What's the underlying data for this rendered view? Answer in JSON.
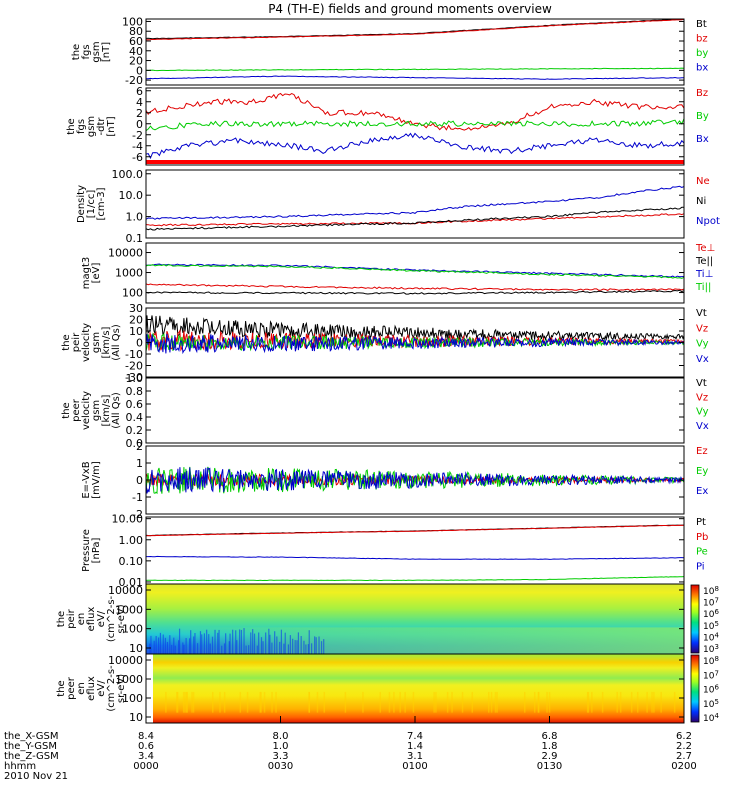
{
  "title": "P4 (TH-E) fields and ground moments overview",
  "chart_data": [
    {
      "id": "fgs",
      "type": "line",
      "ylabel_lines": [
        "the",
        "fgs",
        "gsm",
        "[nT]"
      ],
      "yticks": [
        "100",
        "80",
        "60",
        "40",
        "20",
        "0",
        "-20"
      ],
      "ylim": [
        -30,
        105
      ],
      "series": [
        {
          "name": "Bt",
          "color": "#000000",
          "x": [
            0,
            0.25,
            0.5,
            0.75,
            1.0
          ],
          "y": [
            65,
            69,
            75,
            92,
            105
          ]
        },
        {
          "name": "bz",
          "color": "#e00000",
          "x": [
            0,
            0.25,
            0.5,
            0.75,
            1.0
          ],
          "y": [
            63,
            68,
            74,
            91,
            104
          ]
        },
        {
          "name": "by",
          "color": "#00cc00",
          "x": [
            0,
            0.25,
            0.5,
            0.75,
            1.0
          ],
          "y": [
            0,
            1,
            2,
            3,
            4
          ]
        },
        {
          "name": "bx",
          "color": "#0000cc",
          "x": [
            0,
            0.25,
            0.5,
            0.75,
            1.0
          ],
          "y": [
            -17,
            -12,
            -15,
            -18,
            -15
          ]
        }
      ]
    },
    {
      "id": "fgs_dtr",
      "type": "line",
      "ylabel_lines": [
        "the",
        "fgs",
        "gsm",
        "-dtr",
        "[nT]"
      ],
      "yticks": [
        "6",
        "4",
        "2",
        "0",
        "-2",
        "-4",
        "-6"
      ],
      "ylim": [
        -7.5,
        6.5
      ],
      "series": [
        {
          "name": "Bz",
          "color": "#e00000",
          "x": [
            0,
            0.05,
            0.12,
            0.2,
            0.27,
            0.33,
            0.42,
            0.5,
            0.58,
            0.67,
            0.75,
            0.83,
            0.92,
            1.0
          ],
          "y": [
            2,
            3,
            4,
            4,
            5.5,
            2,
            2,
            0,
            -1,
            0,
            3,
            4,
            3,
            3
          ]
        },
        {
          "name": "By",
          "color": "#00cc00",
          "x": [
            0,
            0.1,
            0.25,
            0.4,
            0.5,
            0.6,
            0.75,
            0.9,
            1.0
          ],
          "y": [
            -1,
            0,
            0,
            0,
            0,
            0,
            0,
            0,
            0.5
          ]
        },
        {
          "name": "Bx",
          "color": "#0000cc",
          "x": [
            0,
            0.08,
            0.17,
            0.27,
            0.33,
            0.42,
            0.5,
            0.58,
            0.67,
            0.75,
            0.83,
            0.92,
            1.0
          ],
          "y": [
            -6,
            -4,
            -3,
            -4,
            -5,
            -3,
            -2,
            -4,
            -5,
            -4,
            -3,
            -4,
            -3.5
          ]
        }
      ]
    },
    {
      "id": "density",
      "type": "line",
      "scale": "log",
      "ylabel_lines": [
        "Density",
        "[1/cc]",
        "[cm-3]"
      ],
      "yticks": [
        "100.0",
        "10.0",
        "1.0",
        "0.1"
      ],
      "ylim": [
        0.1,
        150
      ],
      "series": [
        {
          "name": "Ne",
          "color": "#e00000",
          "x": [
            0,
            0.25,
            0.5,
            0.75,
            1.0
          ],
          "y": [
            0.4,
            0.45,
            0.5,
            0.8,
            1.3
          ]
        },
        {
          "name": "Ni",
          "color": "#000000",
          "x": [
            0,
            0.25,
            0.5,
            0.75,
            1.0
          ],
          "y": [
            0.25,
            0.35,
            0.5,
            1.0,
            2.5
          ]
        },
        {
          "name": "Npot",
          "color": "#0000cc",
          "x": [
            0,
            0.25,
            0.5,
            0.6,
            0.75,
            0.85,
            0.92,
            1.0
          ],
          "y": [
            0.8,
            1.0,
            1.5,
            3.0,
            5.0,
            8.0,
            15.0,
            25.0
          ]
        }
      ]
    },
    {
      "id": "temperature",
      "type": "line",
      "scale": "log",
      "ylabel_lines": [
        "magt3",
        "[eV]"
      ],
      "yticks": [
        "10000",
        "1000",
        "100"
      ],
      "ylim": [
        30,
        30000
      ],
      "series": [
        {
          "name": "Te⊥",
          "color": "#e00000",
          "x": [
            0,
            0.25,
            0.5,
            0.75,
            1.0
          ],
          "y": [
            250,
            200,
            160,
            140,
            140
          ]
        },
        {
          "name": "Te||",
          "color": "#000000",
          "x": [
            0,
            0.25,
            0.5,
            0.75,
            1.0
          ],
          "y": [
            100,
            95,
            90,
            100,
            120
          ]
        },
        {
          "name": "Ti⊥",
          "color": "#0000cc",
          "x": [
            0,
            0.25,
            0.5,
            0.75,
            1.0
          ],
          "y": [
            2500,
            2200,
            1300,
            900,
            600
          ]
        },
        {
          "name": "Ti||",
          "color": "#00cc00",
          "x": [
            0,
            0.25,
            0.5,
            0.75,
            1.0
          ],
          "y": [
            2300,
            2000,
            1200,
            800,
            550
          ]
        }
      ]
    },
    {
      "id": "peir_velocity",
      "type": "line",
      "ylabel_lines": [
        "the",
        "peir",
        "velocity",
        "gsm",
        "[km/s]",
        "(All Qs)"
      ],
      "yticks": [
        "30",
        "20",
        "10",
        "0",
        "-10",
        "-20",
        "-30"
      ],
      "ylim": [
        -30,
        30
      ],
      "series": [
        {
          "name": "Vt",
          "color": "#000000",
          "x": [
            0,
            0.25,
            0.5,
            0.75,
            1.0
          ],
          "y": [
            15,
            11,
            8,
            6,
            5
          ]
        },
        {
          "name": "Vz",
          "color": "#e00000",
          "x": [
            0,
            0.25,
            0.5,
            0.75,
            1.0
          ],
          "y": [
            2,
            1.5,
            1,
            1,
            1
          ]
        },
        {
          "name": "Vy",
          "color": "#00cc00",
          "x": [
            0,
            0.25,
            0.5,
            0.75,
            1.0
          ],
          "y": [
            0,
            0,
            0,
            0,
            0
          ]
        },
        {
          "name": "Vx",
          "color": "#0000cc",
          "x": [
            0,
            0.25,
            0.5,
            0.75,
            1.0
          ],
          "y": [
            -1,
            -1,
            -0.5,
            0,
            0
          ]
        }
      ]
    },
    {
      "id": "peer_velocity",
      "type": "line",
      "ylabel_lines": [
        "the",
        "peer",
        "velocity",
        "gsm",
        "[km/s]",
        "(All Qs)"
      ],
      "yticks": [
        "1.0",
        "0.8",
        "0.6",
        "0.4",
        "0.2",
        "0.0"
      ],
      "ylim": [
        0,
        1
      ],
      "series": [
        {
          "name": "Vt",
          "color": "#000000",
          "x": [],
          "y": []
        },
        {
          "name": "Vz",
          "color": "#e00000",
          "x": [],
          "y": []
        },
        {
          "name": "Vy",
          "color": "#00cc00",
          "x": [],
          "y": []
        },
        {
          "name": "Vx",
          "color": "#0000cc",
          "x": [],
          "y": []
        }
      ]
    },
    {
      "id": "efield",
      "type": "line",
      "ylabel_lines": [
        "E=-VxB",
        "[mV/m]"
      ],
      "yticks": [
        "2",
        "1",
        "0",
        "-1",
        "-2"
      ],
      "ylim": [
        -2,
        2
      ],
      "series": [
        {
          "name": "Ez",
          "color": "#e00000",
          "x": [
            0,
            0.25,
            0.5,
            0.75,
            1.0
          ],
          "y": [
            0,
            0,
            0,
            0,
            0
          ]
        },
        {
          "name": "Ey",
          "color": "#00cc00",
          "x": [
            0,
            0.25,
            0.5,
            0.75,
            1.0
          ],
          "y": [
            0,
            0,
            0,
            0,
            0
          ]
        },
        {
          "name": "Ex",
          "color": "#0000cc",
          "x": [
            0,
            0.25,
            0.5,
            0.75,
            1.0
          ],
          "y": [
            0,
            0,
            0,
            0,
            0
          ]
        }
      ]
    },
    {
      "id": "pressure",
      "type": "line",
      "scale": "log",
      "ylabel_lines": [
        "Pressure",
        "[nPa]"
      ],
      "yticks": [
        "10.00",
        "1.00",
        "0.10",
        "0.01"
      ],
      "ylim": [
        0.008,
        12
      ],
      "series": [
        {
          "name": "Pt",
          "color": "#000000",
          "x": [
            0,
            0.25,
            0.5,
            0.75,
            1.0
          ],
          "y": [
            1.6,
            2.1,
            2.6,
            3.6,
            5.0
          ]
        },
        {
          "name": "Pb",
          "color": "#e00000",
          "x": [
            0,
            0.25,
            0.5,
            0.75,
            1.0
          ],
          "y": [
            1.55,
            2.05,
            2.55,
            3.5,
            4.9
          ]
        },
        {
          "name": "Pe",
          "color": "#00cc00",
          "x": [
            0,
            0.25,
            0.5,
            0.75,
            1.0
          ],
          "y": [
            0.012,
            0.012,
            0.012,
            0.013,
            0.018
          ]
        },
        {
          "name": "Pi",
          "color": "#0000cc",
          "x": [
            0,
            0.25,
            0.5,
            0.75,
            1.0
          ],
          "y": [
            0.16,
            0.15,
            0.12,
            0.12,
            0.14
          ]
        }
      ]
    },
    {
      "id": "peir_spec",
      "type": "heatmap",
      "ylabel_lines": [
        "the",
        "peir",
        "en",
        "eflux",
        "eV/",
        "(cm^2-s-",
        "sr-eV)"
      ],
      "yticks": [
        "10000",
        "1000",
        "100",
        "10"
      ],
      "colorbar_ticks": [
        "10^8",
        "10^7",
        "10^6",
        "10^5",
        "10^4",
        "10^3"
      ]
    },
    {
      "id": "peer_spec",
      "type": "heatmap",
      "ylabel_lines": [
        "the",
        "peer",
        "en",
        "eflux",
        "eV/",
        "(cm^2-s-",
        "sr-eV)"
      ],
      "yticks": [
        "10000",
        "1000",
        "100",
        "10"
      ],
      "colorbar_ticks": [
        "10^8",
        "10^7",
        "10^6",
        "10^5",
        "10^4"
      ]
    }
  ],
  "xaxis": {
    "rows": [
      {
        "label": "the_X-GSM",
        "values": [
          "8.4",
          "8.0",
          "7.4",
          "6.8",
          "6.2"
        ]
      },
      {
        "label": "the_Y-GSM",
        "values": [
          "0.6",
          "1.0",
          "1.4",
          "1.8",
          "2.2"
        ]
      },
      {
        "label": "the_Z-GSM",
        "values": [
          "3.4",
          "3.3",
          "3.1",
          "2.9",
          "2.7"
        ]
      },
      {
        "label": "hhmm",
        "values": [
          "0000",
          "0030",
          "0100",
          "0130",
          "0200"
        ]
      }
    ],
    "date": "2010 Nov 21"
  }
}
